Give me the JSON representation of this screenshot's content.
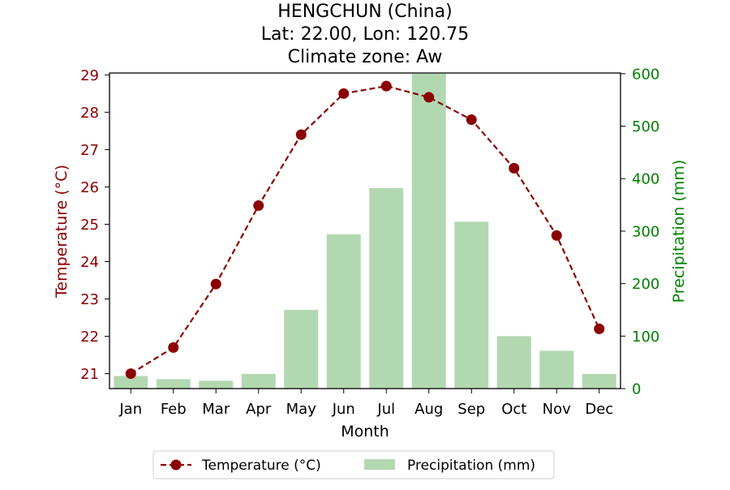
{
  "chart_data": {
    "type": "bar+line",
    "title_lines": [
      "HENGCHUN (China)",
      "Lat: 22.00, Lon: 120.75",
      "Climate zone: Aw"
    ],
    "xlabel": "Month",
    "ylabel_left": "Temperature (°C)",
    "ylabel_right": "Precipitation (mm)",
    "categories": [
      "Jan",
      "Feb",
      "Mar",
      "Apr",
      "May",
      "Jun",
      "Jul",
      "Aug",
      "Sep",
      "Oct",
      "Nov",
      "Dec"
    ],
    "ylim_left": [
      20.6,
      29.05
    ],
    "ylim_right": [
      0,
      601.3
    ],
    "yticks_left": [
      21,
      22,
      23,
      24,
      25,
      26,
      27,
      28,
      29
    ],
    "yticks_right": [
      0,
      100,
      200,
      300,
      400,
      500,
      600
    ],
    "series": [
      {
        "name": "Temperature (°C)",
        "type": "line",
        "axis": "left",
        "color": "#8b0000",
        "values": [
          21.0,
          21.7,
          23.4,
          25.5,
          27.4,
          28.5,
          28.7,
          28.4,
          27.8,
          26.5,
          24.7,
          22.2
        ]
      },
      {
        "name": "Precipitation (mm)",
        "type": "bar",
        "axis": "right",
        "color": "#b2d8b2",
        "values": [
          24,
          18,
          15,
          28,
          150,
          294,
          382,
          600,
          318,
          100,
          72,
          28
        ]
      }
    ],
    "legend_position": "bottom-center",
    "grid": false,
    "left_axis_color": "#8b0000",
    "right_axis_color": "#008000"
  }
}
